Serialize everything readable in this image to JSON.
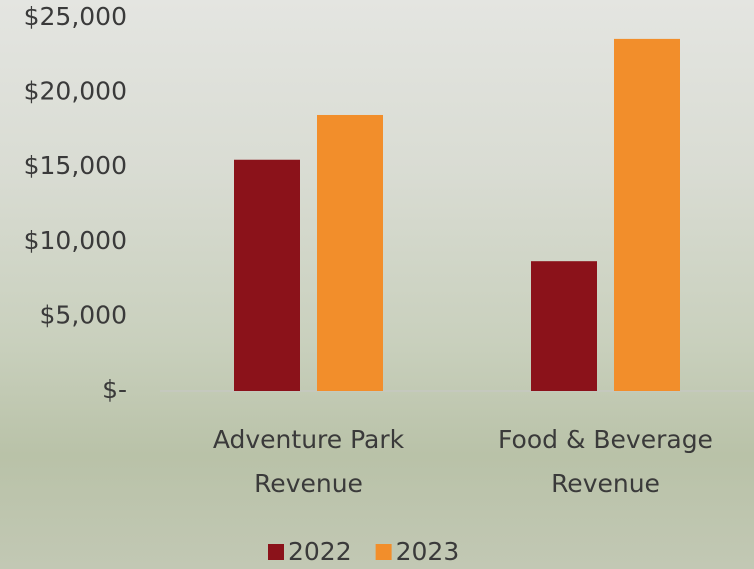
{
  "chart_data": {
    "type": "bar",
    "categories": [
      "Adventure Park Revenue",
      "Food & Beverage Revenue"
    ],
    "series": [
      {
        "name": "2022",
        "color": "#8b121a",
        "values": [
          15500,
          8700
        ]
      },
      {
        "name": "2023",
        "color": "#f28e2b",
        "values": [
          18500,
          23600
        ]
      }
    ],
    "ylim": [
      0,
      25000
    ],
    "yticks": [
      {
        "value": 0,
        "label": "$-"
      },
      {
        "value": 5000,
        "label": "$5,000"
      },
      {
        "value": 10000,
        "label": "$10,000"
      },
      {
        "value": 15000,
        "label": "$15,000"
      },
      {
        "value": 20000,
        "label": "$20,000"
      },
      {
        "value": 25000,
        "label": "$25,000"
      }
    ],
    "legend": "bottom"
  }
}
